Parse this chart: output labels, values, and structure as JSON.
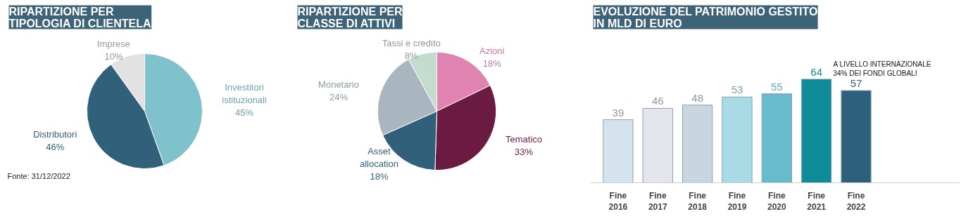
{
  "chart_data": [
    {
      "type": "pie",
      "title": "RIPARTIZIONE PER\nTIPOLOGIA DI CLIENTELA",
      "categories": [
        "Investitori\nistituzionali",
        "Distributori",
        "Imprese"
      ],
      "values": [
        45,
        46,
        10
      ],
      "value_labels": [
        "45%",
        "46%",
        "10%"
      ],
      "colors": [
        "#80c2cc",
        "#30607a",
        "#e2e2e2"
      ],
      "annotations": [
        "Fonte: 31/12/2022"
      ]
    },
    {
      "type": "pie",
      "title": "RIPARTIZIONE PER\nCLASSE DI ATTIVI",
      "categories": [
        "Azioni",
        "Tematico",
        "Asset\nallocation",
        "Monetario",
        "Tassi e credito"
      ],
      "values": [
        18,
        33,
        18,
        24,
        8
      ],
      "value_labels": [
        "18%",
        "33%",
        "18%",
        "24%",
        "8%"
      ],
      "colors": [
        "#e183b0",
        "#6b1a42",
        "#30607a",
        "#a9b5bf",
        "#c4dccd"
      ]
    },
    {
      "type": "bar",
      "title": "EVOLUZIONE DEL PATRIMONIO GESTITO\nIN MLD DI EURO",
      "categories": [
        "Fine\n2016",
        "Fine\n2017",
        "Fine\n2018",
        "Fine\n2019",
        "Fine\n2020",
        "Fine\n2021",
        "Fine\n2022"
      ],
      "values": [
        39,
        46,
        48,
        53,
        55,
        64,
        57
      ],
      "colors": [
        "#d5e4ec",
        "#e4e6ec",
        "#c9d6e0",
        "#a9dbe6",
        "#66bccb",
        "#0f8a98",
        "#2d607a"
      ],
      "data_labels": true,
      "annotations": [
        "A LIVELLO INTERNAZIONALE\n34% DEI FONDI GLOBALI"
      ]
    }
  ]
}
